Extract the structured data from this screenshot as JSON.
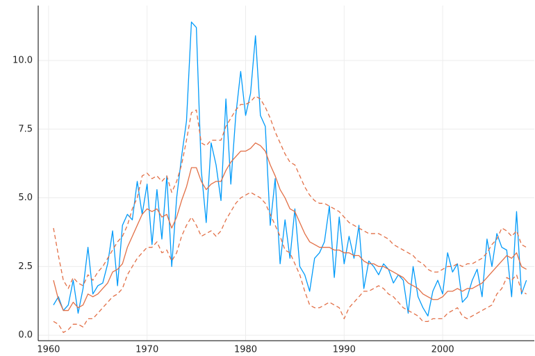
{
  "chart_data": {
    "type": "line",
    "x": [
      1960.5,
      1961,
      1961.5,
      1962,
      1962.5,
      1963,
      1963.5,
      1964,
      1964.5,
      1965,
      1965.5,
      1966,
      1966.5,
      1967,
      1967.5,
      1968,
      1968.5,
      1969,
      1969.5,
      1970,
      1970.5,
      1971,
      1971.5,
      1972,
      1972.5,
      1973,
      1973.5,
      1974,
      1974.5,
      1975,
      1975.5,
      1976,
      1976.5,
      1977,
      1977.5,
      1978,
      1978.5,
      1979,
      1979.5,
      1980,
      1980.5,
      1981,
      1981.5,
      1982,
      1982.5,
      1983,
      1983.5,
      1984,
      1984.5,
      1985,
      1985.5,
      1986,
      1986.5,
      1987,
      1987.5,
      1988,
      1988.5,
      1989,
      1989.5,
      1990,
      1990.5,
      1991,
      1991.5,
      1992,
      1992.5,
      1993,
      1993.5,
      1994,
      1994.5,
      1995,
      1995.5,
      1996,
      1996.5,
      1997,
      1997.5,
      1998,
      1998.5,
      1999,
      1999.5,
      2000,
      2000.5,
      2001,
      2001.5,
      2002,
      2002.5,
      2003,
      2003.5,
      2004,
      2004.5,
      2005,
      2005.5,
      2006,
      2006.5,
      2007,
      2007.5,
      2008,
      2008.5
    ],
    "series": [
      {
        "color": "#009af9",
        "style": "solid",
        "values": [
          1.1,
          1.4,
          0.9,
          1.1,
          2.0,
          0.8,
          1.7,
          3.2,
          1.5,
          1.8,
          1.9,
          2.6,
          3.8,
          1.8,
          4.0,
          4.4,
          4.2,
          5.6,
          4.4,
          5.5,
          3.3,
          5.3,
          3.5,
          5.8,
          2.5,
          5.0,
          6.5,
          7.8,
          11.4,
          11.2,
          6.0,
          4.1,
          7.0,
          6.2,
          4.9,
          8.6,
          5.5,
          8.0,
          9.6,
          8.0,
          8.8,
          10.9,
          8.0,
          7.6,
          4.0,
          5.7,
          2.6,
          4.2,
          2.8,
          4.6,
          2.5,
          2.2,
          1.6,
          2.8,
          3.0,
          3.4,
          4.7,
          2.1,
          4.3,
          2.6,
          3.6,
          2.8,
          4.0,
          1.7,
          2.7,
          2.5,
          2.2,
          2.6,
          2.4,
          1.9,
          2.2,
          2.0,
          0.8,
          2.5,
          1.4,
          1.0,
          0.7,
          1.6,
          2.0,
          1.5,
          3.0,
          2.3,
          2.6,
          1.2,
          1.4,
          2.0,
          2.4,
          1.4,
          3.5,
          2.5,
          3.7,
          3.2,
          3.1,
          1.4,
          4.5,
          1.5,
          2.0
        ]
      },
      {
        "color": "#e26f46",
        "style": "solid",
        "values": [
          2.0,
          1.3,
          0.9,
          0.9,
          1.2,
          1.0,
          1.1,
          1.5,
          1.4,
          1.5,
          1.7,
          1.9,
          2.3,
          2.4,
          2.6,
          3.2,
          3.6,
          4.0,
          4.4,
          4.6,
          4.5,
          4.6,
          4.3,
          4.4,
          3.9,
          4.3,
          4.9,
          5.4,
          6.1,
          6.1,
          5.6,
          5.3,
          5.5,
          5.6,
          5.6,
          6.0,
          6.3,
          6.5,
          6.7,
          6.7,
          6.8,
          7.0,
          6.9,
          6.7,
          6.2,
          5.8,
          5.3,
          5.0,
          4.6,
          4.5,
          4.1,
          3.7,
          3.4,
          3.3,
          3.2,
          3.2,
          3.2,
          3.1,
          3.1,
          3.0,
          3.0,
          2.9,
          2.9,
          2.7,
          2.6,
          2.6,
          2.5,
          2.5,
          2.4,
          2.3,
          2.2,
          2.1,
          1.9,
          1.8,
          1.7,
          1.5,
          1.4,
          1.3,
          1.3,
          1.4,
          1.6,
          1.6,
          1.7,
          1.6,
          1.7,
          1.7,
          1.8,
          1.9,
          2.1,
          2.3,
          2.5,
          2.7,
          2.9,
          2.8,
          3.0,
          2.5,
          2.4
        ]
      },
      {
        "color": "#e26f46",
        "style": "dashed",
        "values": [
          3.9,
          2.9,
          2.0,
          1.7,
          2.1,
          1.9,
          1.8,
          2.2,
          2.0,
          2.3,
          2.5,
          2.8,
          3.1,
          3.4,
          3.6,
          4.0,
          4.6,
          5.0,
          5.8,
          5.9,
          5.7,
          5.8,
          5.6,
          5.8,
          5.2,
          5.6,
          6.2,
          7.1,
          8.1,
          8.2,
          7.0,
          6.9,
          7.1,
          7.1,
          7.1,
          7.6,
          7.9,
          8.2,
          8.4,
          8.4,
          8.5,
          8.7,
          8.6,
          8.3,
          7.9,
          7.4,
          7.0,
          6.6,
          6.3,
          6.2,
          5.8,
          5.4,
          5.1,
          4.9,
          4.8,
          4.8,
          4.7,
          4.6,
          4.5,
          4.3,
          4.1,
          4.0,
          3.9,
          3.8,
          3.7,
          3.7,
          3.7,
          3.6,
          3.5,
          3.3,
          3.2,
          3.1,
          3.0,
          2.9,
          2.7,
          2.6,
          2.4,
          2.3,
          2.3,
          2.4,
          2.5,
          2.5,
          2.6,
          2.5,
          2.6,
          2.6,
          2.7,
          2.8,
          3.0,
          3.3,
          3.5,
          3.9,
          3.8,
          3.6,
          3.8,
          3.3,
          3.2
        ]
      },
      {
        "color": "#e26f46",
        "style": "dashed",
        "values": [
          0.5,
          0.4,
          0.1,
          0.2,
          0.4,
          0.4,
          0.3,
          0.6,
          0.6,
          0.8,
          1.0,
          1.2,
          1.4,
          1.5,
          1.7,
          2.2,
          2.5,
          2.8,
          3.0,
          3.2,
          3.2,
          3.4,
          3.0,
          3.1,
          2.7,
          3.0,
          3.6,
          4.0,
          4.3,
          4.0,
          3.6,
          3.7,
          3.8,
          3.6,
          3.8,
          4.2,
          4.5,
          4.8,
          5.0,
          5.1,
          5.2,
          5.1,
          5.0,
          4.8,
          4.4,
          4.0,
          3.6,
          3.1,
          3.0,
          2.6,
          2.2,
          1.6,
          1.1,
          1.0,
          1.0,
          1.1,
          1.2,
          1.1,
          1.0,
          0.6,
          1.0,
          1.2,
          1.4,
          1.6,
          1.6,
          1.7,
          1.8,
          1.7,
          1.5,
          1.4,
          1.2,
          1.0,
          0.9,
          0.8,
          0.7,
          0.5,
          0.5,
          0.6,
          0.6,
          0.6,
          0.8,
          0.9,
          1.0,
          0.7,
          0.6,
          0.7,
          0.8,
          0.9,
          1.0,
          1.1,
          1.5,
          1.7,
          2.1,
          2.0,
          2.2,
          1.6,
          1.5
        ]
      }
    ],
    "xlim": [
      1958.95,
      2009.3
    ],
    "xticks": [
      1960,
      1970,
      1980,
      1990,
      2000
    ],
    "ylim": [
      -0.2,
      12
    ],
    "yticks": [
      {
        "value": 0,
        "label": "0.0"
      },
      2.5,
      {
        "value": 5,
        "label": "5.0"
      },
      7.5,
      {
        "value": 10,
        "label": "10.0"
      }
    ],
    "grid": true
  }
}
